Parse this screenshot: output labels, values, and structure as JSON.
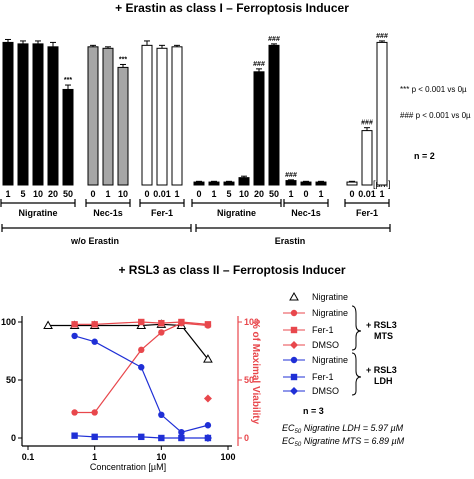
{
  "chart_data": [
    {
      "type": "bar",
      "title": "+ Erastin as class I – Ferroptosis Inducer",
      "unit_label": "[µM]",
      "categories": [
        "1",
        "5",
        "10",
        "20",
        "50",
        "0",
        "1",
        "10",
        "0",
        "0.01",
        "1",
        "0",
        "1",
        "5",
        "10",
        "20",
        "50",
        "1",
        "0",
        "1",
        "0",
        "0.01",
        "1"
      ],
      "subgroups": [
        {
          "label": "Nigratine",
          "condition": "w/o Erastin"
        },
        {
          "label": "Nec-1s",
          "condition": "w/o Erastin"
        },
        {
          "label": "Fer-1",
          "condition": "w/o Erastin"
        },
        {
          "label": "Nigratine",
          "condition": "Erastin"
        },
        {
          "label": "Nec-1s",
          "condition": "Erastin"
        },
        {
          "label": "Fer-1",
          "condition": "Erastin"
        }
      ],
      "bar_colors": [
        "#000000",
        "#000000",
        "#000000",
        "#000000",
        "#000000",
        "#a6a6a6",
        "#a6a6a6",
        "#a6a6a6",
        "#ffffff",
        "#ffffff",
        "#ffffff",
        "#000000",
        "#000000",
        "#000000",
        "#000000",
        "#000000",
        "#000000",
        "#000000",
        "#000000",
        "#000000",
        "#ffffff",
        "#ffffff",
        "#ffffff"
      ],
      "values": [
        97,
        96,
        96,
        94,
        65,
        94,
        93,
        80,
        95,
        93,
        94,
        2,
        2,
        2,
        5,
        77,
        95,
        3,
        2,
        2,
        2,
        37,
        97
      ],
      "errors": [
        2,
        2,
        2,
        3,
        3,
        1,
        1,
        2,
        3,
        2,
        1,
        0.5,
        0.5,
        0.5,
        1,
        2,
        1,
        0.5,
        0.5,
        0.5,
        0.5,
        2,
        1
      ],
      "annotations": [
        "",
        "",
        "",
        "",
        "***",
        "",
        "",
        "***",
        "",
        "",
        "",
        "",
        "",
        "",
        "",
        "###",
        "###",
        "###",
        "",
        "",
        "",
        "###",
        "###"
      ],
      "condition_labels": [
        "w/o Erastin",
        "Erastin"
      ],
      "legend_notes": [
        "*** p < 0.001 vs 0µ",
        "### p < 0.001 vs 0µ"
      ],
      "n_label": "n = 2"
    },
    {
      "type": "line",
      "title": "+ RSL3 as class II – Ferroptosis Inducer",
      "xlabel": "Concentration [µM]",
      "ylabel": "% of Maximal Viability",
      "x_scale": "log",
      "x_ticks": [
        "0.1",
        "1",
        "10",
        "100"
      ],
      "y_ticks": [
        "0",
        "50",
        "100"
      ],
      "ylim": [
        0,
        105
      ],
      "series": [
        {
          "name": "Nigratine",
          "group": "",
          "color": "#000000",
          "marker": "triangle-open",
          "points": [
            [
              0.2,
              97
            ],
            [
              0.5,
              97
            ],
            [
              1,
              97
            ],
            [
              5,
              97
            ],
            [
              10,
              98
            ],
            [
              20,
              97
            ],
            [
              50,
              68
            ]
          ]
        },
        {
          "name": "Nigratine",
          "group": "RSL3 MTS",
          "color": "#e8474c",
          "marker": "circle",
          "points": [
            [
              0.5,
              22
            ],
            [
              1,
              22
            ],
            [
              5,
              76
            ],
            [
              10,
              91
            ],
            [
              20,
              99
            ],
            [
              50,
              97
            ]
          ]
        },
        {
          "name": "Fer-1",
          "group": "RSL3 MTS",
          "color": "#e8474c",
          "marker": "square",
          "points": [
            [
              0.5,
              98
            ],
            [
              1,
              98
            ],
            [
              5,
              100
            ],
            [
              10,
              99
            ],
            [
              20,
              100
            ],
            [
              50,
              98
            ]
          ]
        },
        {
          "name": "DMSO",
          "group": "RSL3 MTS",
          "color": "#e8474c",
          "marker": "diamond",
          "points": [
            [
              50,
              34
            ]
          ]
        },
        {
          "name": "Nigratine",
          "group": "RSL3 LDH",
          "color": "#1f2fd6",
          "marker": "circle",
          "points": [
            [
              0.5,
              88
            ],
            [
              1,
              83
            ],
            [
              5,
              61
            ],
            [
              10,
              20
            ],
            [
              20,
              5
            ],
            [
              50,
              11
            ]
          ]
        },
        {
          "name": "Fer-1",
          "group": "RSL3 LDH",
          "color": "#1f2fd6",
          "marker": "square",
          "points": [
            [
              0.5,
              2
            ],
            [
              1,
              1
            ],
            [
              5,
              1
            ],
            [
              10,
              0
            ],
            [
              20,
              0
            ],
            [
              50,
              0
            ]
          ]
        },
        {
          "name": "DMSO",
          "group": "RSL3 LDH",
          "color": "#1f2fd6",
          "marker": "diamond",
          "points": [
            [
              50,
              0
            ]
          ]
        }
      ],
      "brace_labels": [
        "+ RSL3\nMTS",
        "+ RSL3\nLDH"
      ],
      "n_label": "n = 3",
      "ec50": [
        "EC50 Nigratine LDH = 5.97 µM",
        "EC50 Nigratine MTS = 6.89 µM"
      ]
    }
  ],
  "top_text": {
    "title": "+ Erastin as class I – Ferroptosis Inducer",
    "unit": "[µM]",
    "note1": "*** p < 0.001 vs 0µ",
    "note2": "### p < 0.001 vs 0µ",
    "n": "n = 2",
    "cond1": "w/o Erastin",
    "cond2": "Erastin"
  },
  "bottom_text": {
    "title": "+ RSL3 as class II – Ferroptosis Inducer",
    "xlabel": "Concentration [µM]",
    "ylabel": "% of Maximal Viability",
    "mts": "+ RSL3",
    "mts2": "MTS",
    "ldh": "+ RSL3",
    "ldh2": "LDH",
    "n": "n = 3",
    "ec50_ldh_a": "EC",
    "ec50_sub": "50",
    "ec50_ldh_b": " Nigratine LDH = 5.97 µM",
    "ec50_mts_b": " Nigratine MTS = 6.89 µM"
  }
}
